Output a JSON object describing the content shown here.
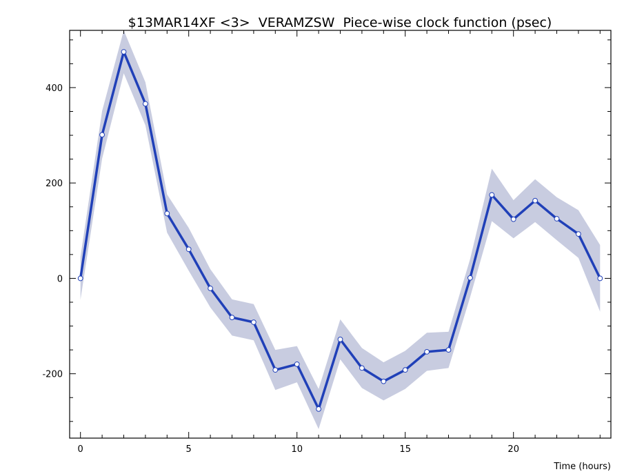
{
  "chart_data": {
    "type": "line",
    "title": "$13MAR14XF <3>  VERAMZSW  Piece-wise clock function (psec)",
    "xlabel": "Time (hours)",
    "ylabel": "",
    "xlim": [
      -0.5,
      24.5
    ],
    "ylim": [
      -335,
      520
    ],
    "x_ticks": [
      0,
      5,
      10,
      15,
      20
    ],
    "y_ticks": [
      -200,
      0,
      200,
      400
    ],
    "grid": false,
    "colors": {
      "line": "#2040b8",
      "band": "#c8cce0",
      "marker_fill": "#ffffff",
      "axis": "#000000"
    },
    "series": [
      {
        "x": [
          0,
          1,
          2,
          3,
          4,
          5,
          6,
          7,
          8,
          9,
          10,
          11,
          12,
          13,
          14,
          15,
          16,
          17,
          18,
          19,
          20,
          21,
          22,
          23,
          24
        ],
        "values": [
          0,
          301,
          475,
          366,
          136,
          61,
          -21,
          -82,
          -92,
          -192,
          -180,
          -274,
          -128,
          -188,
          -216,
          -192,
          -154,
          -150,
          1,
          175,
          124,
          163,
          125,
          93,
          0
        ],
        "error": [
          45,
          50,
          45,
          45,
          40,
          45,
          40,
          38,
          38,
          42,
          38,
          42,
          42,
          42,
          40,
          40,
          40,
          38,
          40,
          55,
          40,
          45,
          45,
          50,
          70
        ]
      }
    ]
  }
}
